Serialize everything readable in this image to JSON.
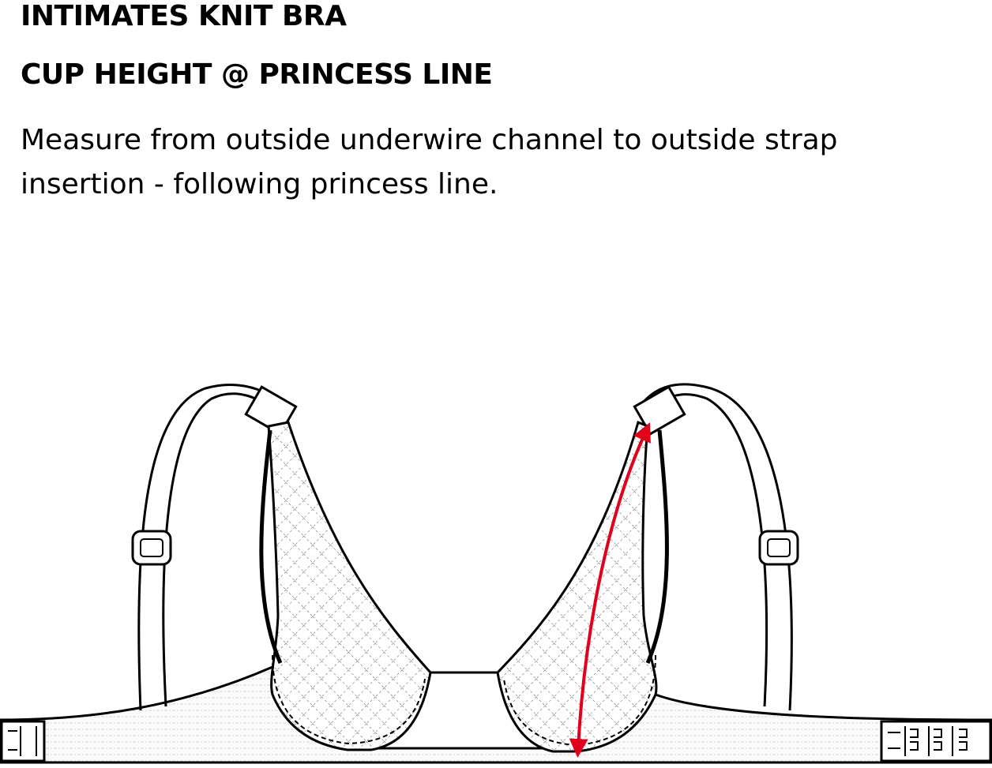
{
  "header": {
    "title": "INTIMATES KNIT BRA",
    "subtitle": "CUP HEIGHT @ PRINCESS LINE"
  },
  "instructions": {
    "line1": "Measure from outside underwire channel to outside strap",
    "line2": "insertion - following princess line."
  },
  "colors": {
    "outline": "#000000",
    "cup_fill": "#e8e8e8",
    "band_fill": "#f2f2f2",
    "measure_arrow": "#e3001b"
  }
}
